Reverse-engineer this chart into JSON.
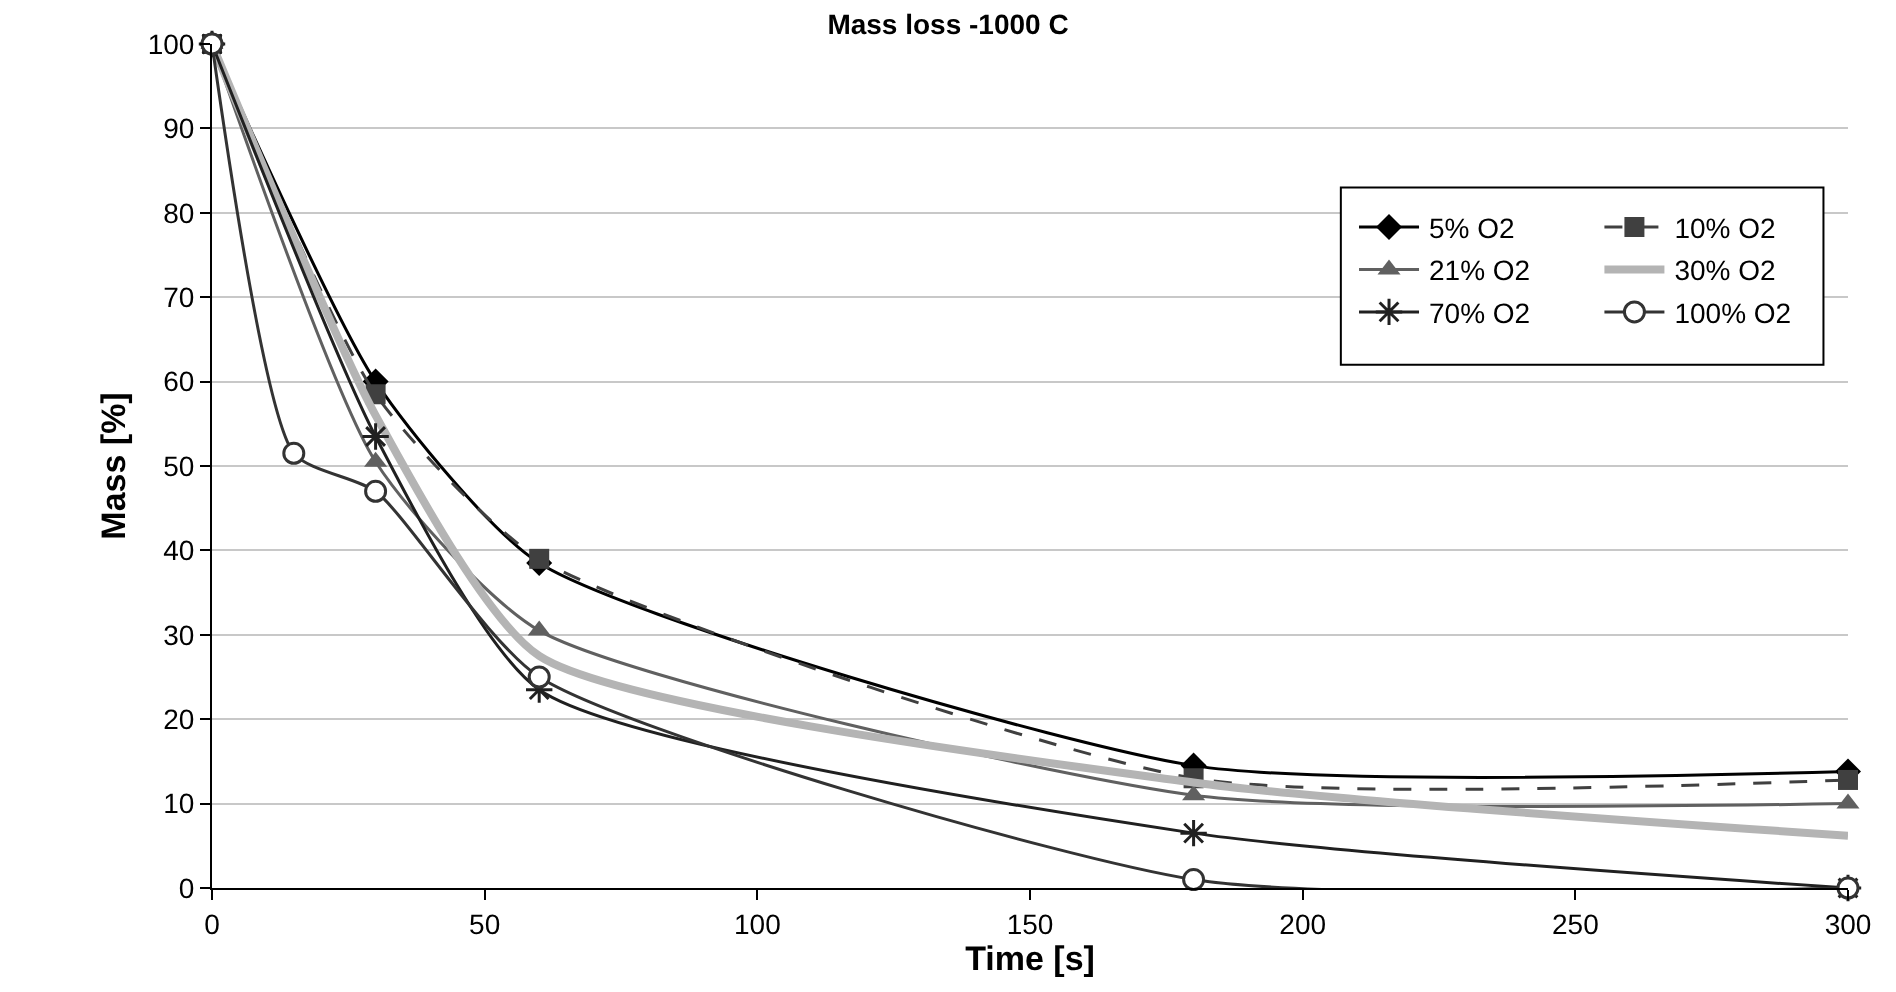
{
  "chart_data": {
    "type": "line",
    "title": "Mass loss -1000 C",
    "xlabel": "Time [s]",
    "ylabel": "Mass [%]",
    "x": [
      0,
      30,
      60,
      180,
      300
    ],
    "xlim": [
      0,
      300
    ],
    "xticks": [
      0,
      50,
      100,
      150,
      200,
      250,
      300
    ],
    "ylim": [
      0,
      100
    ],
    "yticks": [
      0,
      10,
      20,
      30,
      40,
      50,
      60,
      70,
      80,
      90,
      100
    ],
    "grid": "y",
    "legend": "top right",
    "series": [
      {
        "name": "5% O2",
        "color": "#000000",
        "marker": "diamond",
        "line_style": "solid",
        "values": [
          100,
          60,
          38.5,
          14.5,
          13.8
        ]
      },
      {
        "name": "10% O2",
        "color": "#404040",
        "marker": "square",
        "line_style": "dashed",
        "values": [
          100,
          58.5,
          39,
          13,
          12.8
        ]
      },
      {
        "name": "21% O2",
        "color": "#606060",
        "marker": "triangle",
        "line_style": "solid",
        "values": [
          100,
          50.5,
          30.5,
          11,
          10
        ]
      },
      {
        "name": "30% O2",
        "color": "#b4b4b4",
        "marker": "none",
        "line_style": "solid",
        "values": [
          100,
          56,
          27.5,
          12.5,
          6.2
        ]
      },
      {
        "name": "70% O2",
        "color": "#202020",
        "marker": "cross",
        "line_style": "solid",
        "values": [
          100,
          53.5,
          23.5,
          6.5,
          0
        ]
      },
      {
        "name": "100% O2",
        "color": "#333333",
        "marker": "circle",
        "line_style": "solid",
        "x": [
          0,
          15,
          30,
          60,
          180,
          300
        ],
        "values": [
          100,
          51.5,
          47,
          25,
          1,
          0
        ]
      }
    ]
  }
}
